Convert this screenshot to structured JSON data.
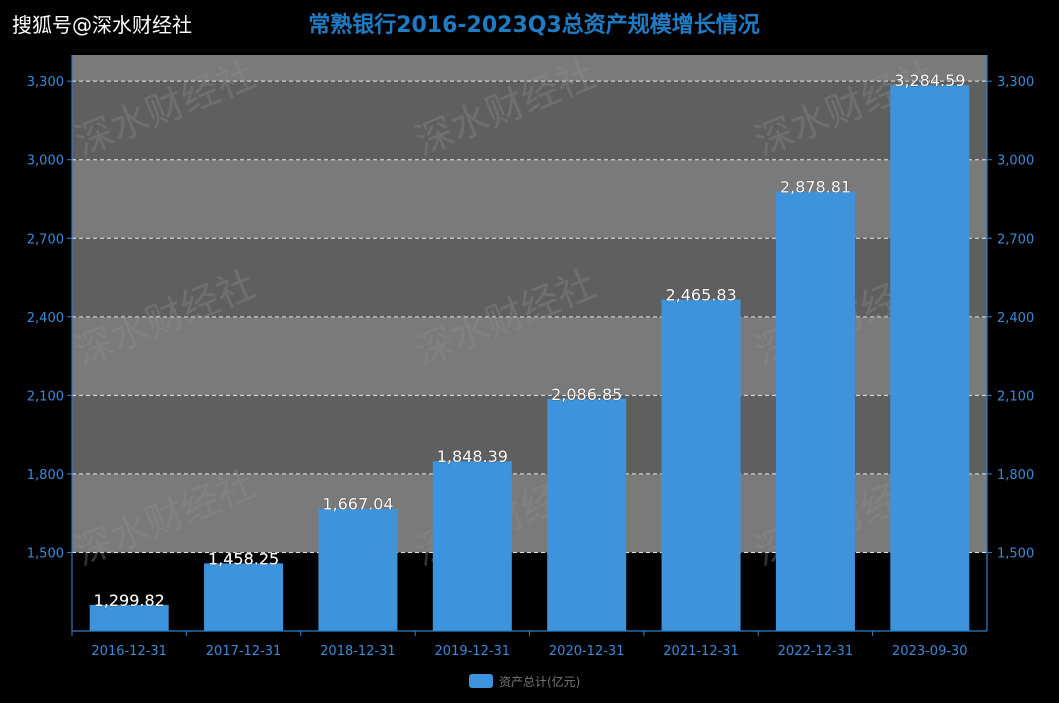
{
  "source_label": "搜狐号@深水财经社",
  "watermark_text": "深水财经社",
  "colors": {
    "background": "#000000",
    "band_dark": "#5f5f5f",
    "band_light": "#7a7a7a",
    "bar": "#3d94dc",
    "axis": "#2f7fc4",
    "tick_text": "#3a8ad8",
    "title": "#1f7cc4",
    "grid": "#ffffff",
    "value_label": "#ffffff",
    "watermark": "#8f8f8f"
  },
  "chart_data": {
    "type": "bar",
    "title": "常熟银行2016-2023Q3总资产规模增长情况",
    "categories": [
      "2016-12-31",
      "2017-12-31",
      "2018-12-31",
      "2019-12-31",
      "2020-12-31",
      "2021-12-31",
      "2022-12-31",
      "2023-09-30"
    ],
    "series": [
      {
        "name": "资产总计(亿元)",
        "values": [
          1299.82,
          1458.25,
          1667.04,
          1848.39,
          2086.85,
          2465.83,
          2878.81,
          3284.59
        ],
        "value_labels": [
          "1,299.82",
          "1,458.25",
          "1,667.04",
          "1,848.39",
          "2,086.85",
          "2,465.83",
          "2,878.81",
          "3,284.59"
        ]
      }
    ],
    "y_ticks": [
      1500,
      1800,
      2100,
      2400,
      2700,
      3000,
      3300
    ],
    "y_tick_labels": [
      "1,500",
      "1,800",
      "2,100",
      "2,400",
      "2,700",
      "3,000",
      "3,300"
    ],
    "ylim": [
      1200,
      3400
    ],
    "grid": true,
    "grid_style": "dashed",
    "legend_position": "bottom-center",
    "dual_y_axis": true
  }
}
